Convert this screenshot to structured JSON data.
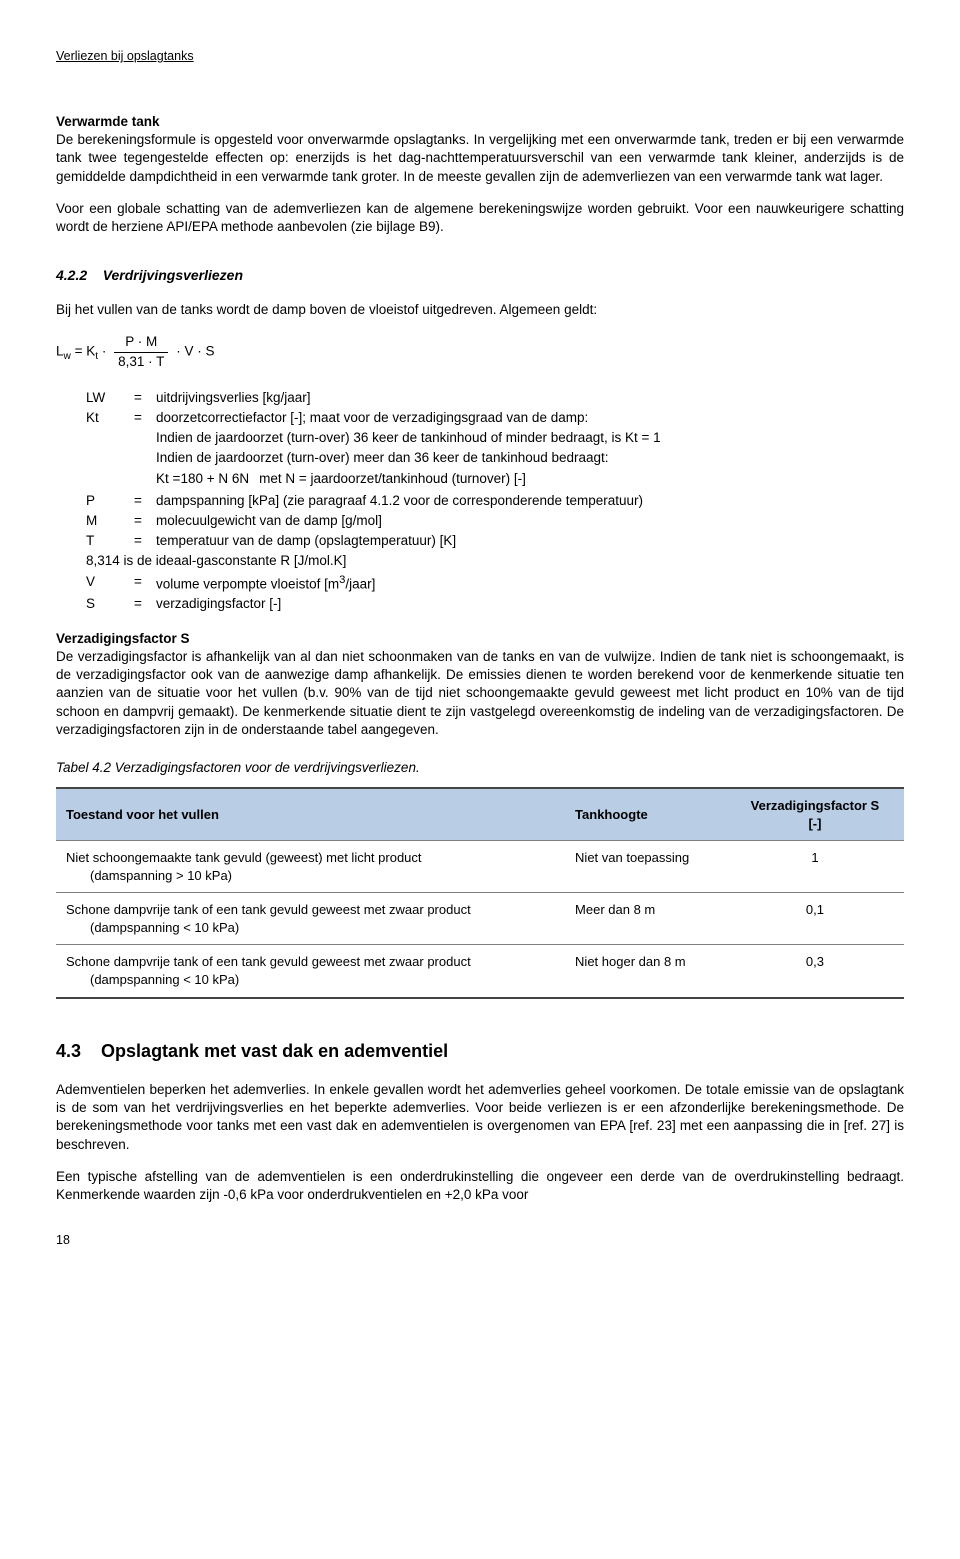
{
  "header": {
    "running_title": "Verliezen bij opslagtanks"
  },
  "section_vt": {
    "title": "Verwarmde tank",
    "p1": "De berekeningsformule is opgesteld voor onverwarmde opslagtanks. In vergelijking met een onverwarmde tank, treden er bij een verwarmde tank twee tegengestelde effecten op: enerzijds is het dag-nachttemperatuursverschil van een verwarmde tank kleiner, anderzijds is de gemiddelde dampdichtheid in een verwarmde tank groter. In de meeste gevallen zijn de ademverliezen van een verwarmde tank wat lager.",
    "p2": "Voor een globale schatting van de ademverliezen kan de algemene berekeningswijze worden gebruikt. Voor een nauwkeurigere schatting wordt de herziene API/EPA methode aanbevolen (zie bijlage B9)."
  },
  "section_422": {
    "num": "4.2.2",
    "title": "Verdrijvingsverliezen",
    "intro": "Bij het vullen van de tanks wordt de damp boven de vloeistof uitgedreven. Algemeen geldt:",
    "formula": {
      "lhs_L": "L",
      "lhs_w": "w",
      "eq": "=",
      "K": "K",
      "t": "t",
      "dot": "·",
      "num_P": "P",
      "num_M": "M",
      "den_831": "8,31",
      "den_T": "T",
      "V": "V",
      "S": "S"
    },
    "defs": {
      "Lw_sym_L": "L",
      "Lw_sym_w": "W",
      "Lw_desc": "uitdrijvingsverlies [kg/jaar]",
      "Kt_sym_K": "K",
      "Kt_sym_t": "t",
      "Kt_desc": "doorzetcorrectiefactor [-]; maat voor de verzadigingsgraad van de damp:",
      "Kt_line1": "Indien de jaardoorzet (turn-over) 36 keer de tankinhoud of minder bedraagt, is K",
      "Kt_line1_t": "t",
      "Kt_line1_tail": " = 1",
      "Kt_line2": "Indien de jaardoorzet (turn-over) meer dan 36 keer de tankinhoud bedraagt:",
      "Kt_frac_K": "K",
      "Kt_frac_t": "t",
      "Kt_frac_eq": "=",
      "Kt_frac_num": "180 + N",
      "Kt_frac_den": "6N",
      "Kt_frac_after": "met N = jaardoorzet/tankinhoud (turnover) [-]",
      "P_sym": "P",
      "P_desc": "dampspanning [kPa] (zie paragraaf 4.1.2 voor de corresponderende temperatuur)",
      "M_sym": "M",
      "M_desc": "molecuulgewicht van de damp [g/mol]",
      "T_sym": "T",
      "T_desc": "temperatuur van de damp (opslagtemperatuur) [K]",
      "R_line": "8,314  is de ideaal-gasconstante R [J/mol.K]",
      "V_sym": "V",
      "V_desc_pre": "volume verpompte vloeistof [m",
      "V_desc_sup": "3",
      "V_desc_post": "/jaar]",
      "S_sym": "S",
      "S_desc": "verzadigingsfactor [-]",
      "eq_sign": "="
    }
  },
  "section_vs": {
    "title": "Verzadigingsfactor S",
    "p": "De verzadigingsfactor is afhankelijk van al dan niet schoonmaken van de tanks en van de vulwijze. Indien de tank niet is schoongemaakt, is de verzadigingsfactor ook van de aanwezige damp afhankelijk. De emissies dienen te worden berekend voor de kenmerkende situatie ten aanzien van de situatie voor het vullen (b.v. 90% van de tijd niet schoongemaakte gevuld geweest met licht product en 10% van de tijd schoon en dampvrij gemaakt). De kenmerkende situatie dient te zijn vastgelegd overeenkomstig de indeling van de verzadigingsfactoren. De verzadigingsfactoren zijn in de onderstaande tabel aangegeven."
  },
  "table": {
    "caption": "Tabel 4.2 Verzadigingsfactoren voor de verdrijvingsverliezen.",
    "head_c1": "Toestand voor het vullen",
    "head_c2": "Tankhoogte",
    "head_c3_l1": "Verzadigingsfactor S",
    "head_c3_l2": "[-]",
    "header_bg": "#b9cde5",
    "rows": [
      {
        "c1": "Niet schoongemaakte tank gevuld (geweest) met licht product",
        "c1_sub": "(damspanning > 10 kPa)",
        "c2": "Niet van toepassing",
        "c3": "1"
      },
      {
        "c1": "Schone dampvrije tank of een tank gevuld geweest met zwaar product",
        "c1_sub": "(dampspanning < 10 kPa)",
        "c2": "Meer dan 8 m",
        "c3": "0,1"
      },
      {
        "c1": "Schone dampvrije tank of een tank gevuld geweest met zwaar product",
        "c1_sub": "(dampspanning < 10 kPa)",
        "c2": "Niet hoger dan 8 m",
        "c3": "0,3"
      }
    ]
  },
  "section_43": {
    "num": "4.3",
    "title": "Opslagtank met vast dak en ademventiel",
    "p1": "Ademventielen beperken het ademverlies. In enkele gevallen wordt het ademverlies geheel voorkomen. De totale emissie van de opslagtank is de som van het verdrijvingsverlies en het beperkte ademverlies. Voor beide verliezen is er een afzonderlijke berekeningsmethode. De berekeningsmethode voor tanks met een vast dak en ademventielen is overgenomen van EPA [ref. 23] met een aanpassing die in [ref. 27] is beschreven.",
    "p2": "Een typische afstelling van de ademventielen is een onderdrukinstelling die ongeveer een derde van de overdrukinstelling bedraagt. Kenmerkende waarden zijn -0,6 kPa voor onderdrukventielen en +2,0 kPa voor"
  },
  "page_number": "18"
}
